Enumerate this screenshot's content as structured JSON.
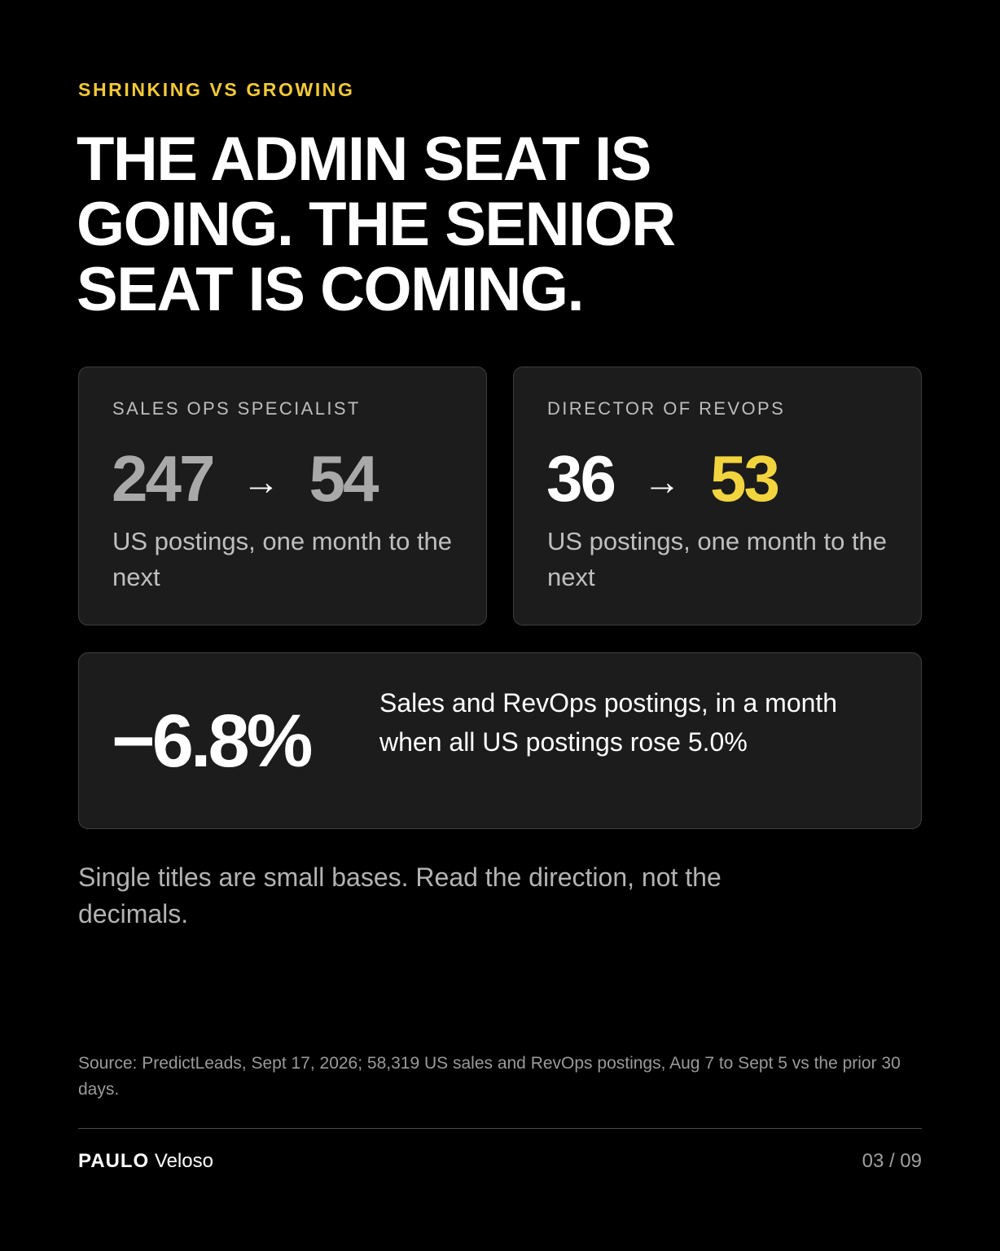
{
  "eyebrow": "SHRINKING VS GROWING",
  "headline": "THE ADMIN SEAT IS GOING. THE SENIOR SEAT IS COMING.",
  "cards": [
    {
      "label": "SALES OPS SPECIALIST",
      "from": "247",
      "arrow": "→",
      "to": "54",
      "description": "US postings, one month to the next"
    },
    {
      "label": "DIRECTOR OF REVOPS",
      "from": "36",
      "arrow": "→",
      "to": "53",
      "description": "US postings, one month to the next"
    }
  ],
  "highlight": {
    "value": "−6.8%",
    "description": "Sales and RevOps postings, in a month when all US postings rose 5.0%"
  },
  "note": "Single titles are small bases. Read the direction, not the decimals.",
  "source": "Source: PredictLeads, Sept 17, 2026; 58,319 US sales and RevOps postings, Aug 7 to Sept 5 vs the prior 30 days.",
  "footer": {
    "brand_first": "PAULO",
    "brand_last": "Veloso",
    "page": "03 / 09"
  },
  "colors": {
    "background": "#000000",
    "accent": "#f2c935",
    "card": "#1c1c1c"
  }
}
